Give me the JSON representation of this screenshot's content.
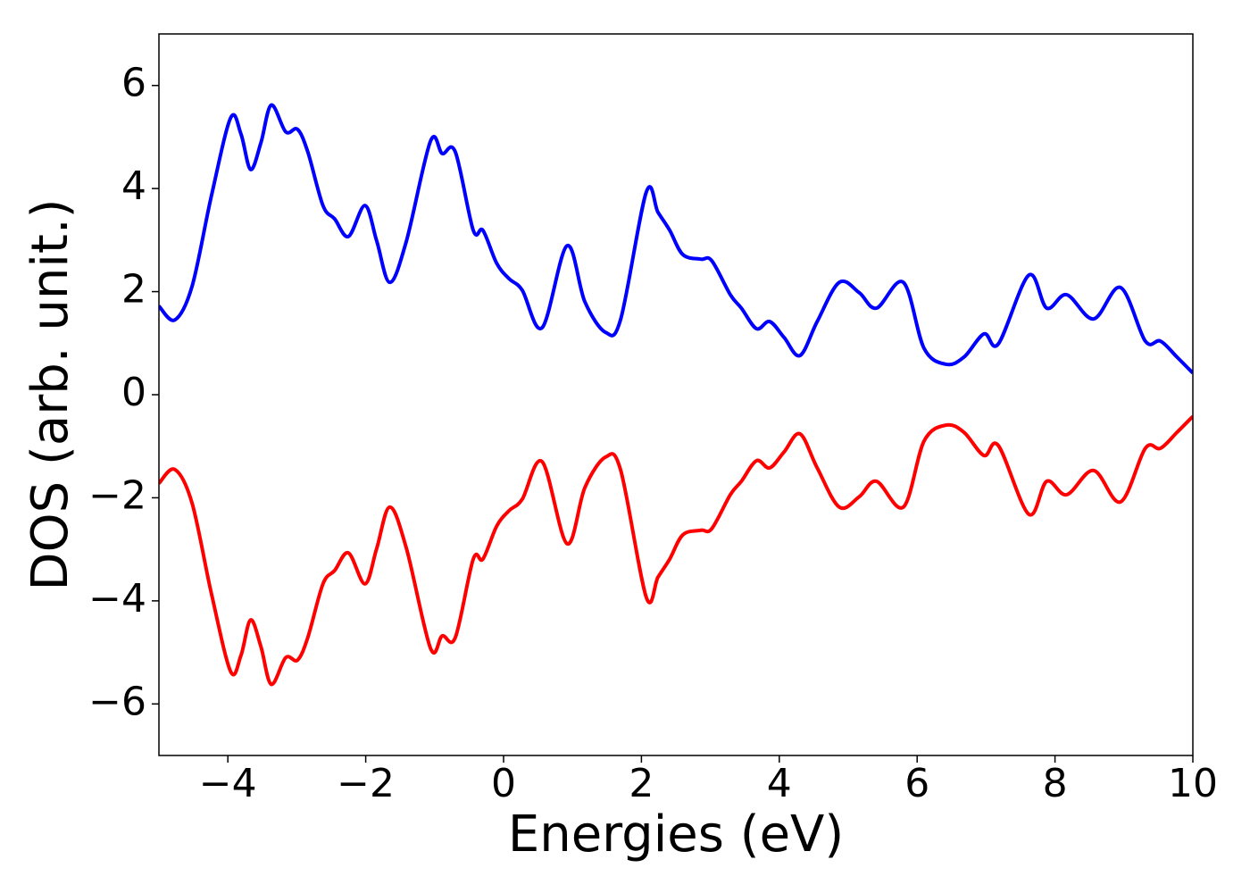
{
  "chart_data": {
    "type": "line",
    "xlabel": "Energies (eV)",
    "ylabel": "DOS (arb. unit.)",
    "xlim": [
      -5,
      10
    ],
    "ylim": [
      -7,
      7
    ],
    "xticks": [
      {
        "value": -4,
        "label": "−4"
      },
      {
        "value": -2,
        "label": "−2"
      },
      0,
      2,
      4,
      6,
      8,
      10
    ],
    "yticks": [
      {
        "value": -6,
        "label": "−6"
      },
      {
        "value": -4,
        "label": "−4"
      },
      {
        "value": -2,
        "label": "−2"
      },
      0,
      2,
      4,
      6
    ],
    "grid": false,
    "x": [
      -5,
      -4.77,
      -4.52,
      -4.24,
      -3.96,
      -3.81,
      -3.67,
      -3.52,
      -3.37,
      -3.16,
      -2.99,
      -2.84,
      -2.62,
      -2.45,
      -2.25,
      -2.01,
      -1.84,
      -1.65,
      -1.41,
      -1.06,
      -0.89,
      -0.7,
      -0.44,
      -0.3,
      -0.1,
      0.08,
      0.27,
      0.56,
      0.92,
      1.18,
      1.48,
      1.7,
      2.07,
      2.24,
      2.41,
      2.6,
      2.86,
      3.02,
      3.29,
      3.45,
      3.67,
      3.86,
      4.07,
      4.3,
      4.55,
      4.87,
      5.16,
      5.41,
      5.8,
      6.1,
      6.42,
      6.68,
      6.97,
      7.18,
      7.62,
      7.88,
      8.17,
      8.56,
      8.95,
      9.31,
      9.53,
      9.77,
      10
    ],
    "series": [
      {
        "color": "#0000ff",
        "values": [
          1.72,
          1.45,
          2.1,
          3.85,
          5.37,
          5.06,
          4.37,
          4.89,
          5.62,
          5.1,
          5.15,
          4.71,
          3.67,
          3.41,
          3.07,
          3.67,
          2.98,
          2.18,
          2.98,
          4.92,
          4.68,
          4.71,
          3.19,
          3.19,
          2.55,
          2.25,
          2.03,
          1.3,
          2.89,
          1.8,
          1.21,
          1.47,
          3.93,
          3.54,
          3.19,
          2.72,
          2.63,
          2.6,
          1.94,
          1.68,
          1.28,
          1.42,
          1.11,
          0.76,
          1.42,
          2.18,
          1.98,
          1.68,
          2.18,
          0.9,
          0.59,
          0.73,
          1.18,
          0.99,
          2.32,
          1.68,
          1.94,
          1.47,
          2.08,
          1.04,
          1.04,
          0.73,
          0.42
        ]
      },
      {
        "color": "#ff0000",
        "values": [
          -1.72,
          -1.45,
          -2.1,
          -3.85,
          -5.37,
          -5.06,
          -4.37,
          -4.89,
          -5.62,
          -5.1,
          -5.15,
          -4.71,
          -3.67,
          -3.41,
          -3.07,
          -3.67,
          -2.98,
          -2.18,
          -2.98,
          -4.92,
          -4.68,
          -4.71,
          -3.19,
          -3.19,
          -2.55,
          -2.25,
          -2.03,
          -1.3,
          -2.89,
          -1.8,
          -1.21,
          -1.47,
          -3.93,
          -3.54,
          -3.19,
          -2.72,
          -2.63,
          -2.6,
          -1.94,
          -1.68,
          -1.28,
          -1.42,
          -1.11,
          -0.76,
          -1.42,
          -2.18,
          -1.98,
          -1.68,
          -2.18,
          -0.9,
          -0.59,
          -0.73,
          -1.18,
          -0.99,
          -2.32,
          -1.68,
          -1.94,
          -1.47,
          -2.08,
          -1.04,
          -1.04,
          -0.73,
          -0.42
        ]
      }
    ]
  }
}
